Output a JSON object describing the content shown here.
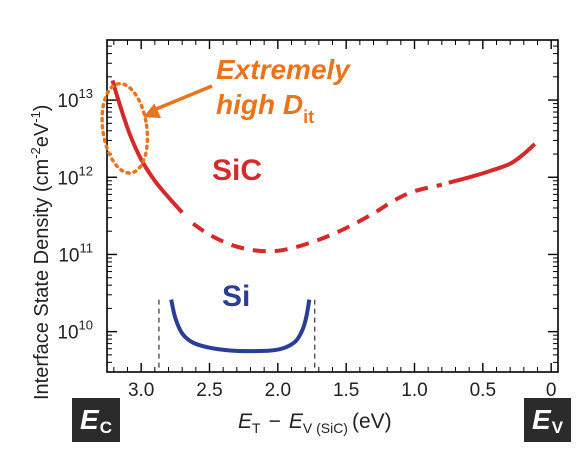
{
  "chart_data": {
    "type": "line",
    "xaxis": {
      "label_main": "E",
      "label_main_sub": "T",
      "label_minus": "−",
      "label_second": "E",
      "label_second_sub": "V (SiC)",
      "label_unit": "(eV)",
      "range": [
        3.25,
        -0.05
      ],
      "reversed": true,
      "ticks": [
        3.0,
        2.5,
        2.0,
        1.5,
        1.0,
        0.5,
        0.0
      ],
      "tick_labels": [
        "3.0",
        "2.5",
        "2.0",
        "1.5",
        "1.0",
        "0.5",
        "0"
      ]
    },
    "yaxis": {
      "label": "Interface State Density (cm",
      "label_sup1": "-2",
      "label_mid": "eV",
      "label_sup2": "-1",
      "label_end": ")",
      "scale": "log",
      "range": [
        3000000000.0,
        60000000000000.0
      ],
      "ticks": [
        10000000000.0,
        100000000000.0,
        1000000000000.0,
        10000000000000.0
      ],
      "tick_base": "10",
      "tick_exponents": [
        "10",
        "11",
        "12",
        "13"
      ]
    },
    "series": [
      {
        "name": "SiC",
        "color": "#d42a2a",
        "segments": [
          {
            "style": "solid",
            "points": [
              [
                3.21,
                18000000000000.0
              ],
              [
                3.15,
                8000000000000.0
              ],
              [
                3.08,
                3500000000000.0
              ],
              [
                3.0,
                1700000000000.0
              ],
              [
                2.9,
                900000000000.0
              ],
              [
                2.8,
                550000000000.0
              ],
              [
                2.7,
                350000000000.0
              ]
            ]
          },
          {
            "style": "dashed",
            "points": [
              [
                2.62,
                250000000000.0
              ],
              [
                2.5,
                180000000000.0
              ],
              [
                2.35,
                135000000000.0
              ],
              [
                2.2,
                115000000000.0
              ],
              [
                2.05,
                110000000000.0
              ],
              [
                1.9,
                120000000000.0
              ],
              [
                1.7,
                155000000000.0
              ],
              [
                1.5,
                220000000000.0
              ],
              [
                1.3,
                340000000000.0
              ],
              [
                1.15,
                500000000000.0
              ],
              [
                1.0,
                660000000000.0
              ],
              [
                0.8,
                800000000000.0
              ]
            ]
          },
          {
            "style": "solid",
            "points": [
              [
                0.75,
                850000000000.0
              ],
              [
                0.6,
                1000000000000.0
              ],
              [
                0.45,
                1200000000000.0
              ],
              [
                0.3,
                1500000000000.0
              ],
              [
                0.2,
                2000000000000.0
              ],
              [
                0.12,
                2700000000000.0
              ]
            ]
          }
        ]
      },
      {
        "name": "Si",
        "color": "#2a3e96",
        "segments": [
          {
            "style": "solid",
            "points": [
              [
                2.78,
                26000000000.0
              ],
              [
                2.75,
                15000000000.0
              ],
              [
                2.7,
                9500000000.0
              ],
              [
                2.62,
                7200000000.0
              ],
              [
                2.5,
                6200000000.0
              ],
              [
                2.35,
                5700000000.0
              ],
              [
                2.2,
                5600000000.0
              ],
              [
                2.05,
                5700000000.0
              ],
              [
                1.95,
                6200000000.0
              ],
              [
                1.87,
                7500000000.0
              ],
              [
                1.82,
                10500000000.0
              ],
              [
                1.79,
                16000000000.0
              ],
              [
                1.77,
                26000000000.0
              ]
            ]
          }
        ]
      }
    ],
    "bandgap_lines": [
      2.87,
      1.73
    ],
    "series_labels": [
      {
        "text": "SiC",
        "color": "#d42a2a",
        "x": 2.3,
        "y": 1500000000000.0
      },
      {
        "text": "Si",
        "color": "#2a3e96",
        "x": 2.27,
        "y": 13000000000.0
      }
    ],
    "annotation": {
      "line1": "Extremely",
      "line2": "high D",
      "line2_sub": "it",
      "color": "#e8741e",
      "ellipse_center": [
        3.12,
        4300000000000.0
      ],
      "arrow_to": [
        3.0,
        5000000000000.0
      ]
    },
    "corner_labels": {
      "left": {
        "text": "E",
        "sub": "C"
      },
      "right": {
        "text": "E",
        "sub": "V"
      }
    }
  }
}
